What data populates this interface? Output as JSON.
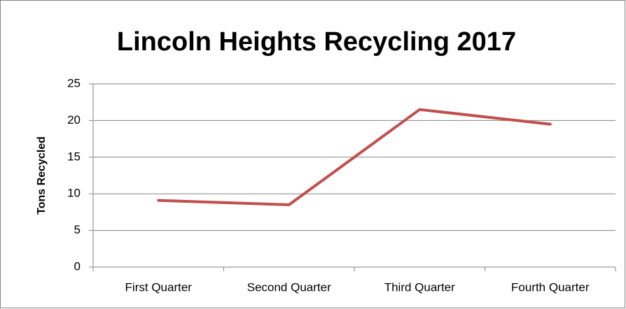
{
  "chart_data": {
    "type": "line",
    "title": "Lincoln Heights Recycling 2017",
    "y_label": "Tons Recycled",
    "categories": [
      "First Quarter",
      "Second Quarter",
      "Third Quarter",
      "Fourth Quarter"
    ],
    "series": [
      {
        "name": "Tons Recycled",
        "color": "#c0504d",
        "values": [
          9.1,
          8.5,
          21.5,
          19.5
        ]
      }
    ],
    "ylim": [
      0,
      25
    ],
    "yticks": [
      0,
      5,
      10,
      15,
      20,
      25
    ],
    "grid": true
  }
}
